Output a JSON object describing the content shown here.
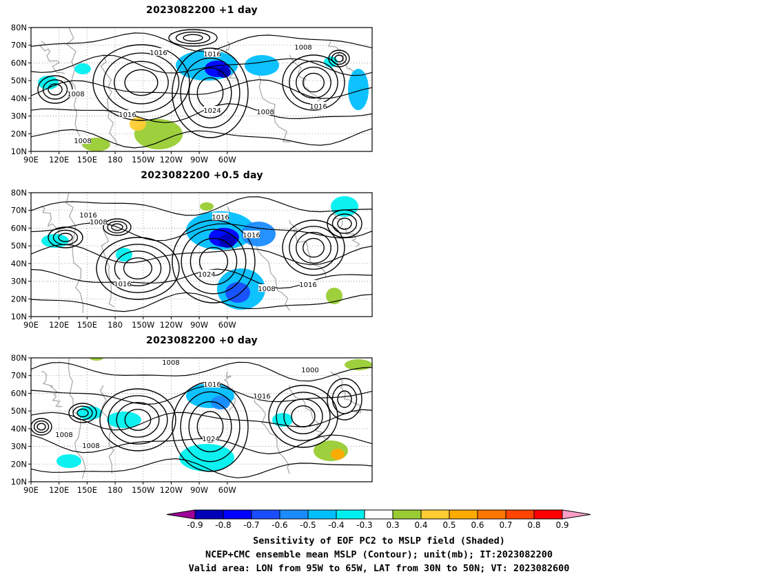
{
  "panels": [
    {
      "title": "2023082200  +1 day",
      "lows": [
        1008,
        1008,
        1008
      ],
      "highs": [
        1016,
        1016,
        1016,
        1024,
        1008,
        1016
      ]
    },
    {
      "title": "2023082200  +0.5 day",
      "lows": [
        1008
      ],
      "highs": [
        1016,
        1016,
        1016,
        1024,
        1016,
        1008,
        1016
      ]
    },
    {
      "title": "2023082200  +0 day",
      "lows": [
        1008,
        1008
      ],
      "highs": [
        1008,
        1016,
        1024,
        1016,
        1000
      ]
    }
  ],
  "axes": {
    "lat_ticks": [
      "80N",
      "70N",
      "60N",
      "50N",
      "40N",
      "30N",
      "20N",
      "10N"
    ],
    "lon_ticks": [
      "90E",
      "120E",
      "150E",
      "180",
      "150W",
      "120W",
      "90W",
      "60W"
    ]
  },
  "colorbar": {
    "ticks": [
      "-0.9",
      "-0.8",
      "-0.7",
      "-0.6",
      "-0.5",
      "-0.4",
      "-0.3",
      "0.3",
      "0.4",
      "0.5",
      "0.6",
      "0.7",
      "0.8",
      "0.9"
    ],
    "colors": [
      "#a0009a",
      "#0000b8",
      "#0000ff",
      "#1a4dff",
      "#1a8cff",
      "#00bfff",
      "#00f0f0",
      "#ffffff",
      "#99cc33",
      "#ffcc33",
      "#ffaa00",
      "#ff7700",
      "#ff4400",
      "#ff0000",
      "#ffa0c8"
    ]
  },
  "caption": {
    "line1": "Sensitivity of EOF PC2 to MSLP field (Shaded)",
    "line2": "NCEP+CMC ensemble mean MSLP (Contour); unit(mb); IT:2023082200",
    "line3": "Valid area: LON from 95W to 65W, LAT from 30N to 50N; VT: 2023082600"
  }
}
